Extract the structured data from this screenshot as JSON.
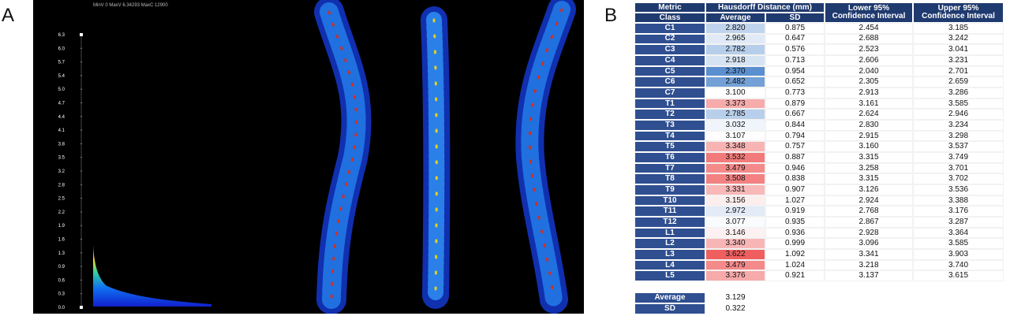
{
  "panel_a": {
    "label": "A",
    "info": "MinV 0 MaxV 6.34293 MaxC 12900",
    "scale_labels": [
      "0.0",
      "0.3",
      "0.6",
      "0.9",
      "1.3",
      "1.6",
      "1.9",
      "2.2",
      "2.5",
      "2.8",
      "3.2",
      "3.5",
      "3.8",
      "4.1",
      "4.4",
      "4.7",
      "5.0",
      "5.4",
      "5.7",
      "6.0",
      "6.3"
    ]
  },
  "panel_b": {
    "label": "B",
    "header": {
      "metric": "Metric",
      "hausdorff": "Hausdorff Distance (mm)",
      "lower": [
        "Lower 95%",
        "Confidence Interval"
      ],
      "upper": [
        "Upper 95%",
        "Confidence Interval"
      ],
      "class": "Class",
      "average": "Average",
      "sd": "SD"
    },
    "rows": [
      [
        "C1",
        "2.820",
        "0.875",
        "2.454",
        "3.185"
      ],
      [
        "C2",
        "2.965",
        "0.647",
        "2.688",
        "3.242"
      ],
      [
        "C3",
        "2.782",
        "0.576",
        "2.523",
        "3.041"
      ],
      [
        "C4",
        "2.918",
        "0.713",
        "2.606",
        "3.231"
      ],
      [
        "C5",
        "2.370",
        "0.954",
        "2.040",
        "2.701"
      ],
      [
        "C6",
        "2.482",
        "0.652",
        "2.305",
        "2.659"
      ],
      [
        "C7",
        "3.100",
        "0.773",
        "2.913",
        "3.286"
      ],
      [
        "T1",
        "3.373",
        "0.879",
        "3.161",
        "3.585"
      ],
      [
        "T2",
        "2.785",
        "0.667",
        "2.624",
        "2.946"
      ],
      [
        "T3",
        "3.032",
        "0.844",
        "2.830",
        "3.234"
      ],
      [
        "T4",
        "3.107",
        "0.794",
        "2.915",
        "3.298"
      ],
      [
        "T5",
        "3.348",
        "0.757",
        "3.160",
        "3.537"
      ],
      [
        "T6",
        "3.532",
        "0.887",
        "3.315",
        "3.749"
      ],
      [
        "T7",
        "3.479",
        "0.946",
        "3.258",
        "3.701"
      ],
      [
        "T8",
        "3.508",
        "0.838",
        "3.315",
        "3.702"
      ],
      [
        "T9",
        "3.331",
        "0.907",
        "3.126",
        "3.536"
      ],
      [
        "T10",
        "3.156",
        "1.027",
        "2.924",
        "3.388"
      ],
      [
        "T11",
        "2.972",
        "0.919",
        "2.768",
        "3.176"
      ],
      [
        "T12",
        "3.077",
        "0.935",
        "2.867",
        "3.287"
      ],
      [
        "L1",
        "3.146",
        "0.936",
        "2.928",
        "3.364"
      ],
      [
        "L2",
        "3.340",
        "0.999",
        "3.096",
        "3.585"
      ],
      [
        "L3",
        "3.622",
        "1.092",
        "3.341",
        "3.903"
      ],
      [
        "L4",
        "3.479",
        "1.024",
        "3.218",
        "3.740"
      ],
      [
        "L5",
        "3.376",
        "0.921",
        "3.137",
        "3.615"
      ]
    ],
    "summary": [
      [
        "Average",
        "3.129"
      ],
      [
        "SD",
        "0.322"
      ]
    ]
  }
}
